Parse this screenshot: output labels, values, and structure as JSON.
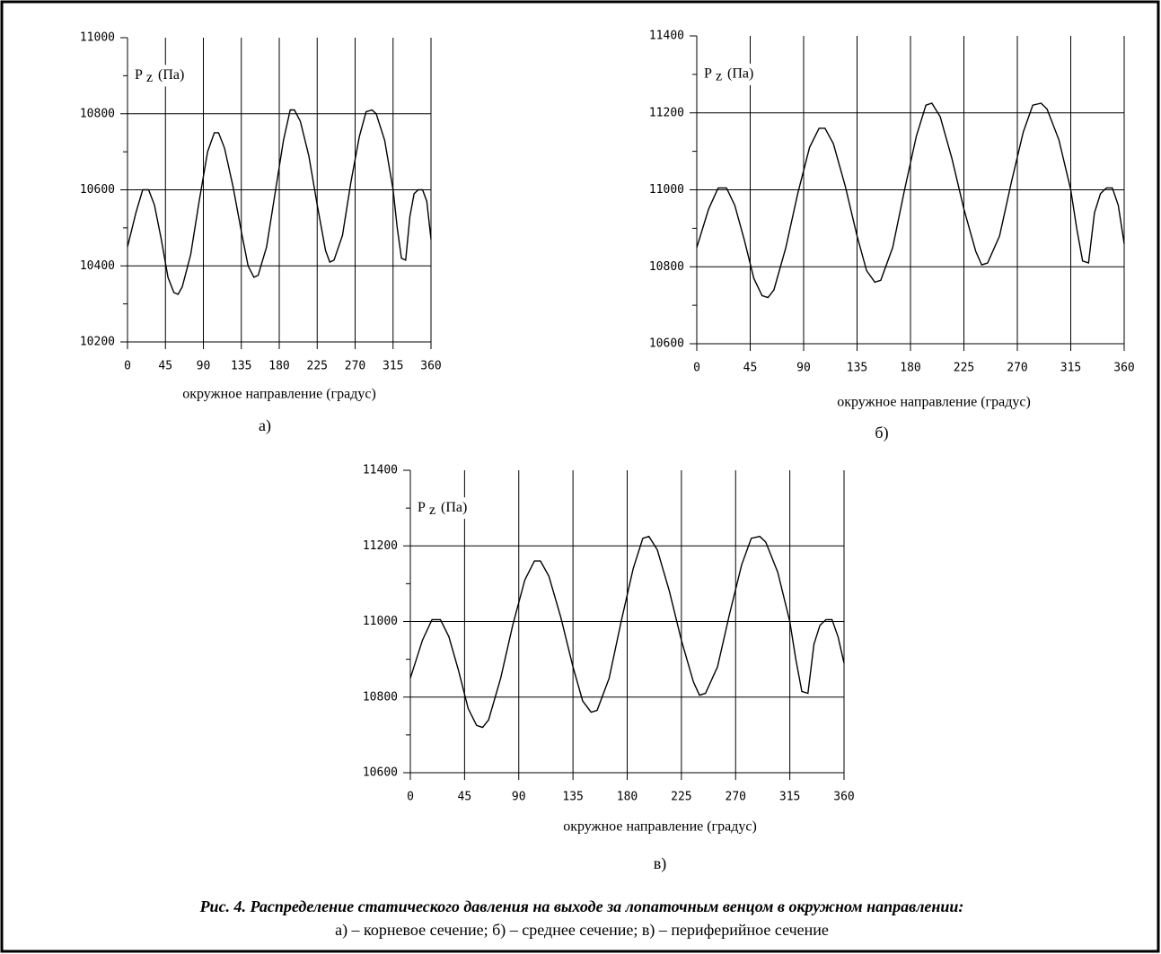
{
  "chart_data": [
    {
      "type": "line",
      "panel_label": "а)",
      "xlabel": "окружное направление (градус)",
      "ylabel": "P",
      "ylabel_sub": "z",
      "ylabel_unit": "(Па)",
      "color": "#000000",
      "xlim": [
        0,
        360
      ],
      "xticks": [
        0,
        45,
        90,
        135,
        180,
        225,
        270,
        315,
        360
      ],
      "ylim": [
        10200,
        11000
      ],
      "yticks": [
        10200,
        10400,
        10600,
        10800,
        11000
      ],
      "yminorticks": [
        10300,
        10500,
        10700,
        10900
      ],
      "grid": true,
      "x": [
        0,
        10,
        18,
        25,
        32,
        40,
        48,
        55,
        60,
        65,
        75,
        85,
        95,
        103,
        108,
        115,
        125,
        135,
        143,
        150,
        155,
        165,
        175,
        185,
        193,
        198,
        205,
        215,
        225,
        235,
        240,
        245,
        255,
        265,
        275,
        283,
        290,
        295,
        305,
        315,
        320,
        325,
        330,
        335,
        340,
        345,
        350,
        355,
        360
      ],
      "values": [
        10450,
        10540,
        10600,
        10600,
        10560,
        10470,
        10370,
        10330,
        10325,
        10345,
        10430,
        10570,
        10700,
        10750,
        10750,
        10710,
        10610,
        10490,
        10400,
        10370,
        10375,
        10450,
        10590,
        10730,
        10810,
        10810,
        10780,
        10690,
        10560,
        10440,
        10410,
        10415,
        10480,
        10620,
        10740,
        10805,
        10810,
        10800,
        10730,
        10600,
        10500,
        10420,
        10415,
        10530,
        10590,
        10600,
        10600,
        10570,
        10470
      ]
    },
    {
      "type": "line",
      "panel_label": "б)",
      "xlabel": "окружное направление (градус)",
      "ylabel": "P",
      "ylabel_sub": "z",
      "ylabel_unit": "(Па)",
      "color": "#000000",
      "xlim": [
        0,
        360
      ],
      "xticks": [
        0,
        45,
        90,
        135,
        180,
        225,
        270,
        315,
        360
      ],
      "ylim": [
        10600,
        11400
      ],
      "yticks": [
        10600,
        10800,
        11000,
        11200,
        11400
      ],
      "yminorticks": [
        10700,
        10900,
        11100,
        11300
      ],
      "grid": true,
      "x": [
        0,
        10,
        18,
        25,
        32,
        40,
        48,
        55,
        60,
        65,
        75,
        85,
        95,
        103,
        108,
        115,
        125,
        135,
        143,
        150,
        155,
        165,
        175,
        185,
        193,
        198,
        205,
        215,
        225,
        235,
        240,
        245,
        255,
        265,
        275,
        283,
        290,
        295,
        305,
        315,
        320,
        325,
        330,
        335,
        340,
        345,
        350,
        355,
        360
      ],
      "values": [
        10850,
        10950,
        11005,
        11005,
        10960,
        10870,
        10770,
        10725,
        10720,
        10740,
        10850,
        10990,
        11110,
        11160,
        11160,
        11120,
        11010,
        10880,
        10790,
        10760,
        10765,
        10850,
        11000,
        11140,
        11220,
        11225,
        11190,
        11080,
        10950,
        10840,
        10805,
        10810,
        10880,
        11020,
        11150,
        11220,
        11225,
        11210,
        11130,
        11000,
        10900,
        10815,
        10810,
        10940,
        10990,
        11005,
        11005,
        10960,
        10860
      ]
    },
    {
      "type": "line",
      "panel_label": "в)",
      "xlabel": "окружное направление (градус)",
      "ylabel": "P",
      "ylabel_sub": "z",
      "ylabel_unit": "(Па)",
      "color": "#000000",
      "xlim": [
        0,
        360
      ],
      "xticks": [
        0,
        45,
        90,
        135,
        180,
        225,
        270,
        315,
        360
      ],
      "ylim": [
        10600,
        11400
      ],
      "yticks": [
        10600,
        10800,
        11000,
        11200,
        11400
      ],
      "yminorticks": [
        10700,
        10900,
        11100,
        11300
      ],
      "grid": true,
      "x": [
        0,
        10,
        18,
        25,
        32,
        40,
        48,
        55,
        60,
        65,
        75,
        85,
        95,
        103,
        108,
        115,
        125,
        135,
        143,
        150,
        155,
        165,
        175,
        185,
        193,
        198,
        205,
        215,
        225,
        235,
        240,
        245,
        255,
        265,
        275,
        283,
        290,
        295,
        305,
        315,
        320,
        325,
        330,
        335,
        340,
        345,
        350,
        355,
        360
      ],
      "values": [
        10850,
        10950,
        11005,
        11005,
        10960,
        10870,
        10770,
        10725,
        10720,
        10740,
        10850,
        10990,
        11110,
        11160,
        11160,
        11120,
        11010,
        10880,
        10790,
        10760,
        10765,
        10850,
        11000,
        11140,
        11220,
        11225,
        11190,
        11080,
        10950,
        10840,
        10805,
        10810,
        10880,
        11020,
        11150,
        11220,
        11225,
        11210,
        11130,
        11000,
        10900,
        10815,
        10810,
        10940,
        10990,
        11005,
        11005,
        10960,
        10890
      ]
    }
  ],
  "figure_caption": {
    "title": "Рис. 4. Распределение статического давления на выходе за лопаточным венцом в окружном направлении:",
    "subtitle": "а) – корневое сечение; б) – среднее сечение; в) – периферийное сечение"
  }
}
